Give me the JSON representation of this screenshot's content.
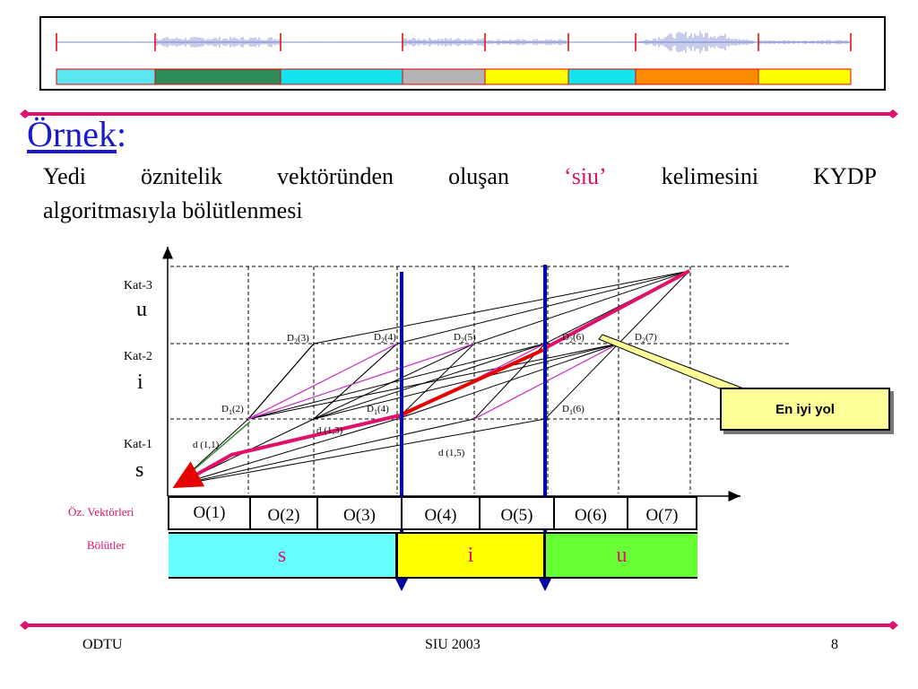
{
  "title": {
    "word": "Örnek",
    "colon": ":"
  },
  "body": {
    "line1_words": [
      "Yedi",
      "öznitelik",
      "vektöründen",
      "oluşan",
      "‘siu’",
      "kelimesini",
      "KYDP"
    ],
    "line2": "algoritmasıyla bölütlenmesi"
  },
  "diagram": {
    "levels": [
      {
        "label": "Kat-3",
        "letter": "u"
      },
      {
        "label": "Kat-2",
        "letter": "i"
      },
      {
        "label": "Kat-1",
        "letter": "s"
      }
    ],
    "node_labels": {
      "d2_3": "D2(3)",
      "d2_4": "D2(4)",
      "d2_5": "D2(5)",
      "d2_6": "D2(6)",
      "d2_7": "D2(7)",
      "d1_2": "D1(2)",
      "d1_4": "D1(4)",
      "d1_6": "D1(6)"
    },
    "dist_labels": {
      "d11": "d (1,1)",
      "d13": "d (1,3)",
      "d15": "d (1,5)"
    },
    "callout": "En iyi yol",
    "row_labels": {
      "vectors": "Öz. Vektörleri",
      "segments": "Bölütler"
    },
    "vectors": [
      "O(1)",
      "O(2)",
      "O(3)",
      "O(4)",
      "O(5)",
      "O(6)",
      "O(7)"
    ],
    "segments": [
      {
        "letter": "s",
        "color": "#66ffff"
      },
      {
        "letter": "i",
        "color": "#ffff00"
      },
      {
        "letter": "u",
        "color": "#66ff33"
      }
    ]
  },
  "waveform_strip_colors": [
    "#5ce6f0",
    "#2e8b57",
    "#14e4f0",
    "#b4b4b4",
    "#ffff00",
    "#14e4f0",
    "#ff8c00",
    "#ffff00"
  ],
  "footer": {
    "left": "ODTU",
    "center": "SIU 2003",
    "right": "8"
  },
  "colors": {
    "title_blue": "#1a1acc",
    "accent_pink": "#e0106a",
    "boundary_blue": "#0000aa",
    "best_path_red": "#e60000"
  }
}
